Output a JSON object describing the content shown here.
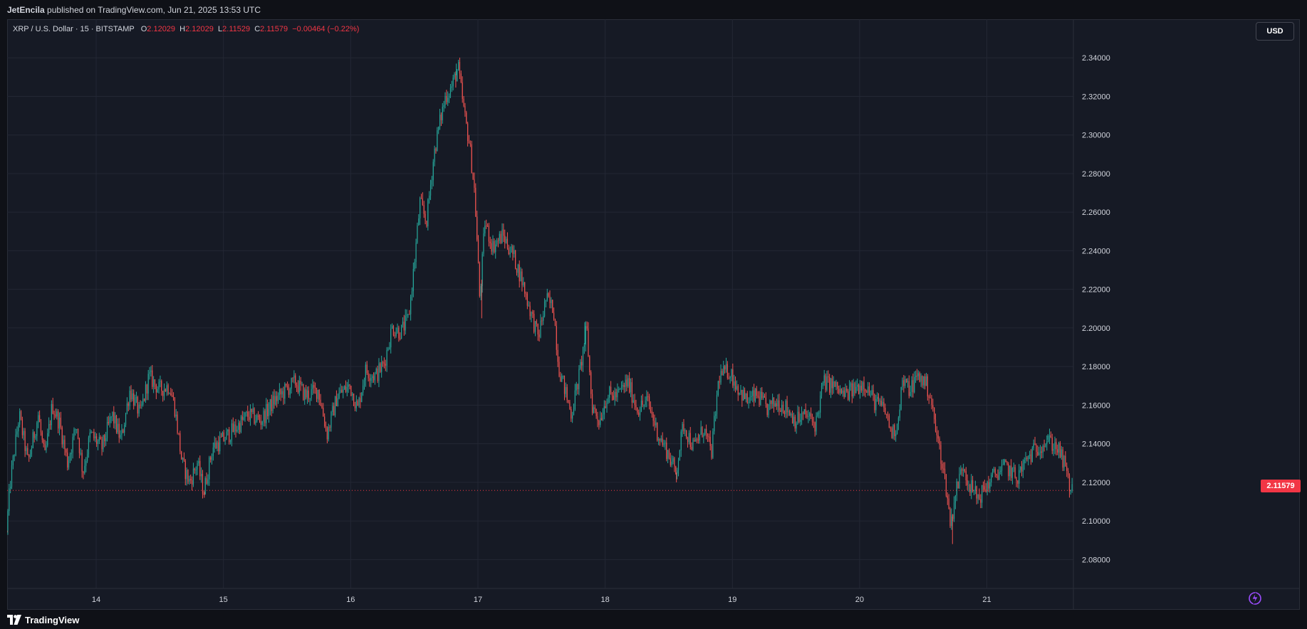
{
  "header": {
    "publisher": "JetEncila",
    "published_text": "published on TradingView.com, Jun 21, 2025 13:53 UTC"
  },
  "legend": {
    "symbol": "XRP / U.S. Dollar · 15 · BITSTAMP",
    "o_label": "O",
    "o_value": "2.12029",
    "h_label": "H",
    "h_value": "2.12029",
    "l_label": "L",
    "l_value": "2.11529",
    "c_label": "C",
    "c_value": "2.11579",
    "change": "−0.00464 (−0.22%)"
  },
  "currency_button": "USD",
  "last_price_label": "2.11579",
  "footer": {
    "brand": "TradingView",
    "logo_icon": "tradingview-logo-icon"
  },
  "colors": {
    "up": "#26a69a",
    "down": "#ef5350",
    "grid": "#232734",
    "last_price_line": "#f23645",
    "axis_text": "#d1d4dc"
  },
  "chart_data": {
    "type": "candlestick",
    "interval": "15",
    "symbol": "XRP / U.S. Dollar",
    "exchange": "BITSTAMP",
    "ylim": [
      2.065,
      2.36
    ],
    "y_ticks": [
      "2.34000",
      "2.32000",
      "2.30000",
      "2.28000",
      "2.26000",
      "2.24000",
      "2.22000",
      "2.20000",
      "2.18000",
      "2.16000",
      "2.14000",
      "2.12000",
      "2.10000",
      "2.08000"
    ],
    "x_ticks": [
      "14",
      "15",
      "16",
      "17",
      "18",
      "19",
      "20",
      "21"
    ],
    "x_range_days": [
      13.3,
      21.68
    ],
    "grid": true,
    "last_price": 2.11579,
    "price_path": [
      [
        13.3,
        2.095
      ],
      [
        13.33,
        2.12
      ],
      [
        13.4,
        2.155
      ],
      [
        13.47,
        2.13
      ],
      [
        13.55,
        2.155
      ],
      [
        13.6,
        2.132
      ],
      [
        13.66,
        2.16
      ],
      [
        13.72,
        2.15
      ],
      [
        13.78,
        2.13
      ],
      [
        13.85,
        2.15
      ],
      [
        13.9,
        2.125
      ],
      [
        13.96,
        2.145
      ],
      [
        14.05,
        2.138
      ],
      [
        14.13,
        2.155
      ],
      [
        14.2,
        2.142
      ],
      [
        14.27,
        2.168
      ],
      [
        14.35,
        2.155
      ],
      [
        14.42,
        2.175
      ],
      [
        14.5,
        2.168
      ],
      [
        14.58,
        2.17
      ],
      [
        14.62,
        2.16
      ],
      [
        14.68,
        2.13
      ],
      [
        14.74,
        2.12
      ],
      [
        14.8,
        2.13
      ],
      [
        14.85,
        2.115
      ],
      [
        14.92,
        2.138
      ],
      [
        15.0,
        2.142
      ],
      [
        15.1,
        2.148
      ],
      [
        15.2,
        2.155
      ],
      [
        15.3,
        2.152
      ],
      [
        15.4,
        2.162
      ],
      [
        15.5,
        2.168
      ],
      [
        15.57,
        2.172
      ],
      [
        15.65,
        2.165
      ],
      [
        15.75,
        2.168
      ],
      [
        15.82,
        2.145
      ],
      [
        15.9,
        2.165
      ],
      [
        16.0,
        2.17
      ],
      [
        16.06,
        2.158
      ],
      [
        16.12,
        2.178
      ],
      [
        16.2,
        2.175
      ],
      [
        16.27,
        2.182
      ],
      [
        16.33,
        2.2
      ],
      [
        16.4,
        2.198
      ],
      [
        16.46,
        2.205
      ],
      [
        16.5,
        2.23
      ],
      [
        16.55,
        2.265
      ],
      [
        16.6,
        2.255
      ],
      [
        16.66,
        2.29
      ],
      [
        16.7,
        2.305
      ],
      [
        16.75,
        2.32
      ],
      [
        16.8,
        2.325
      ],
      [
        16.85,
        2.335
      ],
      [
        16.9,
        2.31
      ],
      [
        16.94,
        2.295
      ],
      [
        16.98,
        2.27
      ],
      [
        17.02,
        2.215
      ],
      [
        17.06,
        2.255
      ],
      [
        17.12,
        2.242
      ],
      [
        17.2,
        2.248
      ],
      [
        17.28,
        2.238
      ],
      [
        17.35,
        2.225
      ],
      [
        17.42,
        2.208
      ],
      [
        17.48,
        2.195
      ],
      [
        17.54,
        2.215
      ],
      [
        17.6,
        2.21
      ],
      [
        17.64,
        2.18
      ],
      [
        17.68,
        2.17
      ],
      [
        17.74,
        2.155
      ],
      [
        17.8,
        2.175
      ],
      [
        17.86,
        2.2
      ],
      [
        17.9,
        2.16
      ],
      [
        17.96,
        2.152
      ],
      [
        18.02,
        2.165
      ],
      [
        18.1,
        2.165
      ],
      [
        18.18,
        2.172
      ],
      [
        18.26,
        2.158
      ],
      [
        18.34,
        2.162
      ],
      [
        18.42,
        2.145
      ],
      [
        18.5,
        2.135
      ],
      [
        18.56,
        2.125
      ],
      [
        18.62,
        2.15
      ],
      [
        18.7,
        2.138
      ],
      [
        18.78,
        2.148
      ],
      [
        18.84,
        2.135
      ],
      [
        18.9,
        2.175
      ],
      [
        18.98,
        2.178
      ],
      [
        19.04,
        2.17
      ],
      [
        19.12,
        2.162
      ],
      [
        19.2,
        2.165
      ],
      [
        19.28,
        2.158
      ],
      [
        19.36,
        2.162
      ],
      [
        19.44,
        2.158
      ],
      [
        19.5,
        2.152
      ],
      [
        19.58,
        2.155
      ],
      [
        19.66,
        2.15
      ],
      [
        19.72,
        2.172
      ],
      [
        19.8,
        2.17
      ],
      [
        19.88,
        2.165
      ],
      [
        19.96,
        2.168
      ],
      [
        20.04,
        2.172
      ],
      [
        20.12,
        2.162
      ],
      [
        20.2,
        2.158
      ],
      [
        20.26,
        2.145
      ],
      [
        20.3,
        2.15
      ],
      [
        20.34,
        2.172
      ],
      [
        20.4,
        2.168
      ],
      [
        20.46,
        2.175
      ],
      [
        20.52,
        2.172
      ],
      [
        20.56,
        2.165
      ],
      [
        20.6,
        2.148
      ],
      [
        20.64,
        2.135
      ],
      [
        20.68,
        2.12
      ],
      [
        20.72,
        2.098
      ],
      [
        20.76,
        2.115
      ],
      [
        20.82,
        2.13
      ],
      [
        20.86,
        2.12
      ],
      [
        20.9,
        2.115
      ],
      [
        20.94,
        2.112
      ],
      [
        21.0,
        2.118
      ],
      [
        21.08,
        2.125
      ],
      [
        21.16,
        2.128
      ],
      [
        21.24,
        2.122
      ],
      [
        21.32,
        2.132
      ],
      [
        21.4,
        2.138
      ],
      [
        21.48,
        2.142
      ],
      [
        21.56,
        2.138
      ],
      [
        21.62,
        2.128
      ],
      [
        21.66,
        2.116
      ]
    ],
    "extremes": [
      [
        13.3,
        2.094
      ],
      [
        14.85,
        2.112
      ],
      [
        16.83,
        2.337
      ],
      [
        17.03,
        2.205
      ],
      [
        17.84,
        2.203
      ],
      [
        18.56,
        2.12
      ],
      [
        20.73,
        2.088
      ],
      [
        21.48,
        2.145
      ]
    ]
  }
}
